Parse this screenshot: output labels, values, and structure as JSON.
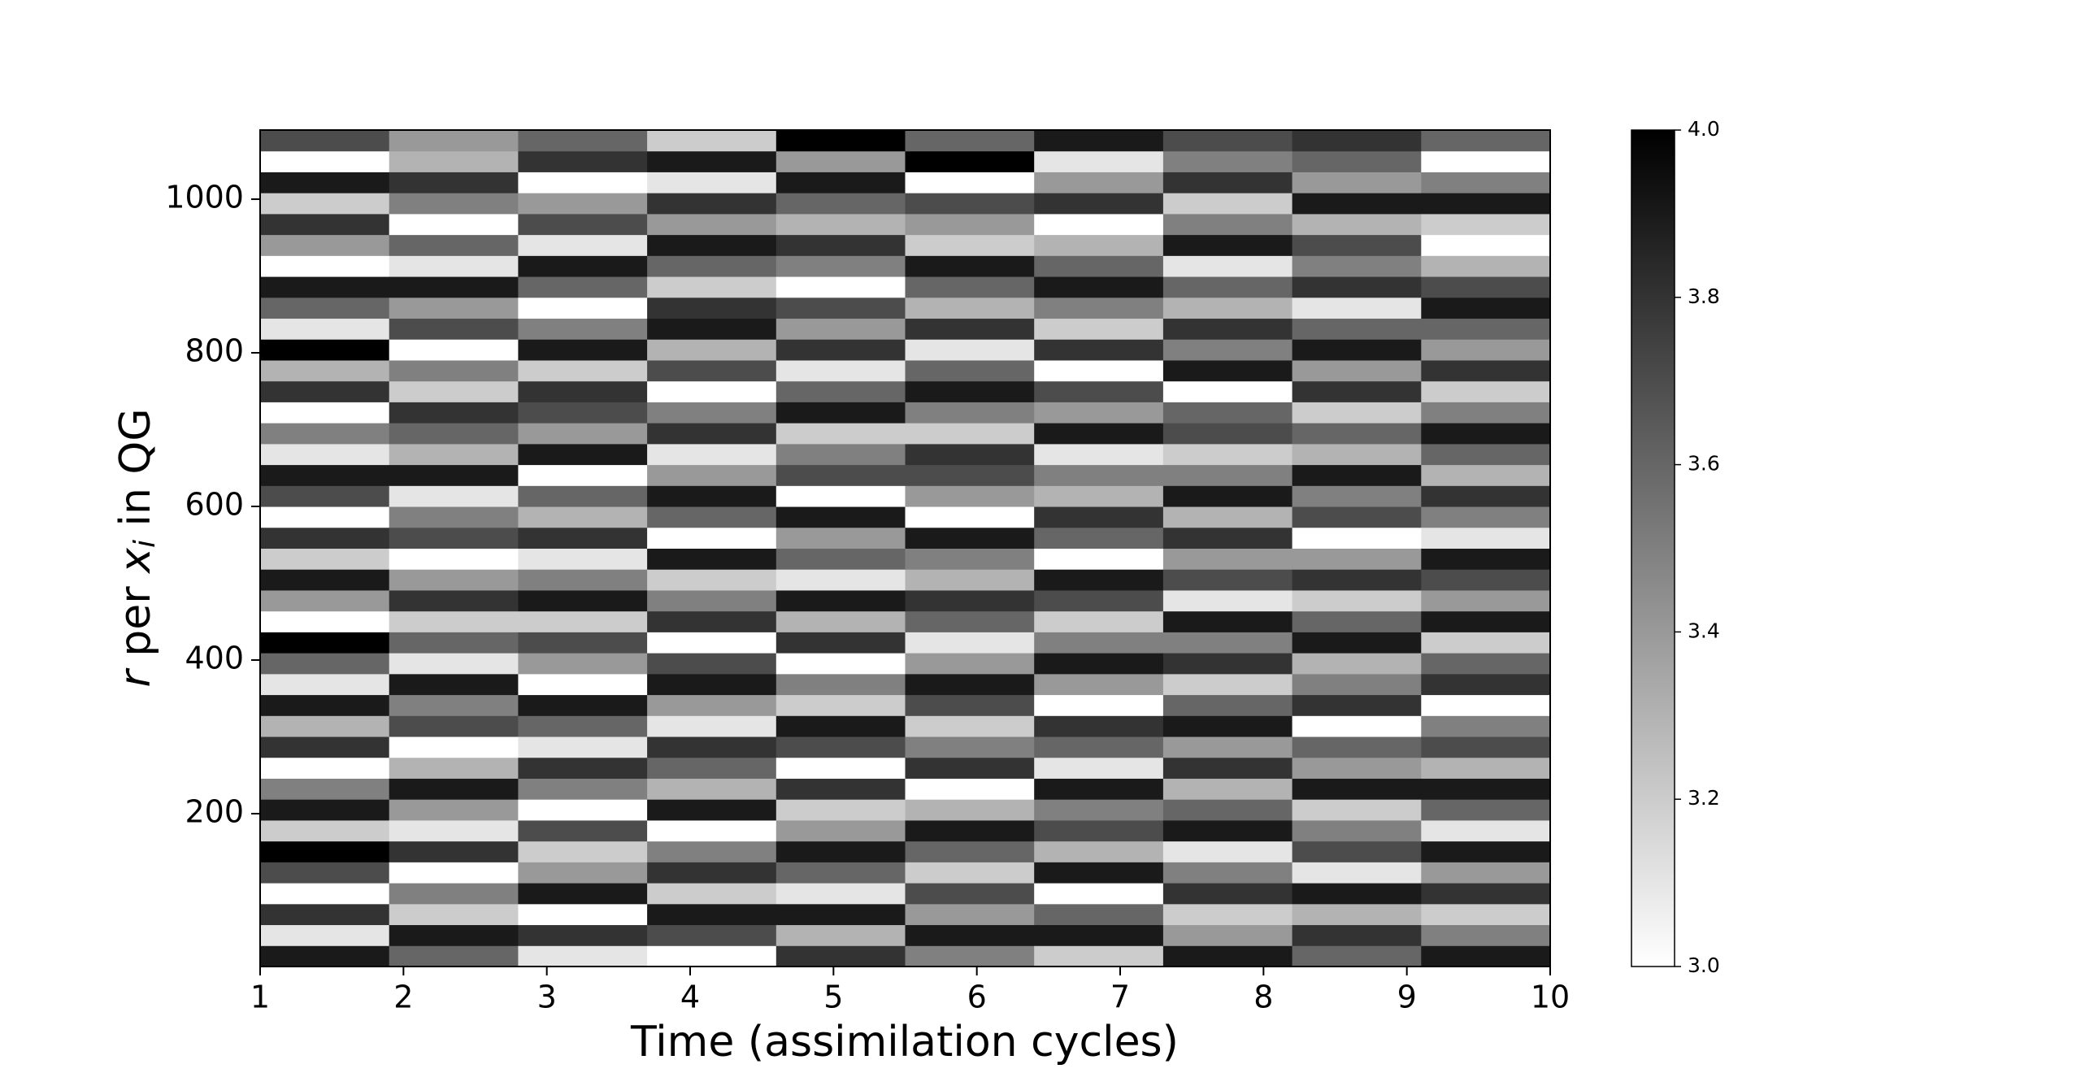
{
  "chart_data": {
    "type": "heatmap",
    "xlabel": "Time (assimilation cycles)",
    "ylabel_parts": [
      "r",
      " per ",
      "x",
      "i",
      " in QG"
    ],
    "xlim": [
      1,
      10
    ],
    "xticks": [
      1,
      2,
      3,
      4,
      5,
      6,
      7,
      8,
      9,
      10
    ],
    "ylim": [
      1,
      1090
    ],
    "yticks": [
      200,
      400,
      600,
      800,
      1000
    ],
    "colormap": [
      "#ffffff",
      "#000000"
    ],
    "clim": [
      3,
      4
    ],
    "cticks": [
      {
        "value": 3,
        "label": "3.0"
      },
      {
        "value": 3.2,
        "label": "3.2"
      },
      {
        "value": 3.4,
        "label": "3.4"
      },
      {
        "value": 3.6,
        "label": "3.6"
      },
      {
        "value": 3.8,
        "label": "3.8"
      },
      {
        "value": 4,
        "label": "4.0"
      }
    ],
    "values": [
      [
        3.9,
        3.1,
        3.8,
        3.0,
        3.7,
        4.0,
        3.2,
        3.9,
        3.5,
        3.0,
        3.8,
        3.3,
        3.9,
        3.1,
        3.6,
        4.0,
        3.0,
        3.4,
        3.9,
        3.2,
        3.8,
        3.0,
        3.7,
        3.9,
        3.1,
        3.5,
        3.0,
        3.8,
        3.3,
        4.0,
        3.1,
        3.6,
        3.9,
        3.0,
        3.4,
        3.8,
        3.2,
        3.9,
        3.0,
        3.7
      ],
      [
        3.6,
        3.9,
        3.2,
        3.5,
        3.0,
        3.8,
        3.1,
        3.4,
        3.9,
        3.3,
        3.0,
        3.7,
        3.5,
        3.9,
        3.1,
        3.6,
        3.2,
        3.8,
        3.4,
        3.0,
        3.7,
        3.5,
        3.1,
        3.9,
        3.3,
        3.6,
        3.8,
        3.2,
        3.5,
        3.0,
        3.7,
        3.4,
        3.9,
        3.1,
        3.6,
        3.0,
        3.5,
        3.8,
        3.3,
        3.4
      ],
      [
        3.1,
        3.8,
        3.0,
        3.9,
        3.4,
        3.2,
        3.7,
        3.0,
        3.5,
        3.8,
        3.1,
        3.6,
        3.9,
        3.0,
        3.4,
        3.7,
        3.2,
        3.9,
        3.5,
        3.1,
        3.8,
        3.3,
        3.6,
        3.0,
        3.9,
        3.4,
        3.7,
        3.8,
        3.2,
        3.9,
        3.5,
        3.0,
        3.6,
        3.9,
        3.1,
        3.7,
        3.4,
        3.0,
        3.8,
        3.6
      ],
      [
        3.0,
        3.7,
        3.9,
        3.2,
        3.8,
        3.5,
        3.0,
        3.9,
        3.3,
        3.6,
        3.8,
        3.1,
        3.4,
        3.9,
        3.7,
        3.0,
        3.8,
        3.5,
        3.2,
        3.9,
        3.0,
        3.6,
        3.9,
        3.4,
        3.1,
        3.8,
        3.5,
        3.0,
        3.7,
        3.3,
        3.9,
        3.8,
        3.2,
        3.6,
        3.9,
        3.4,
        3.8,
        3.1,
        3.9,
        3.2
      ],
      [
        3.8,
        3.3,
        3.9,
        3.1,
        3.6,
        3.9,
        3.4,
        3.2,
        3.8,
        3.0,
        3.7,
        3.9,
        3.2,
        3.5,
        3.0,
        3.8,
        3.3,
        3.9,
        3.1,
        3.6,
        3.4,
        3.9,
        3.0,
        3.7,
        3.5,
        3.2,
        3.9,
        3.6,
        3.1,
        3.8,
        3.4,
        3.7,
        3.0,
        3.5,
        3.8,
        3.3,
        3.6,
        3.9,
        3.4,
        4.0
      ],
      [
        3.5,
        3.9,
        3.4,
        3.7,
        3.2,
        3.6,
        3.9,
        3.3,
        3.0,
        3.8,
        3.5,
        3.2,
        3.7,
        3.9,
        3.4,
        3.1,
        3.6,
        3.8,
        3.3,
        3.5,
        3.9,
        3.0,
        3.4,
        3.7,
        3.8,
        3.2,
        3.5,
        3.9,
        3.6,
        3.1,
        3.8,
        3.3,
        3.6,
        3.9,
        3.2,
        3.4,
        3.7,
        3.0,
        4.0,
        3.6
      ],
      [
        3.2,
        3.9,
        3.6,
        3.0,
        3.9,
        3.3,
        3.7,
        3.5,
        3.9,
        3.1,
        3.6,
        3.8,
        3.0,
        3.4,
        3.9,
        3.5,
        3.2,
        3.7,
        3.9,
        3.0,
        3.6,
        3.8,
        3.3,
        3.5,
        3.1,
        3.9,
        3.4,
        3.7,
        3.0,
        3.8,
        3.2,
        3.5,
        3.9,
        3.6,
        3.3,
        3.0,
        3.8,
        3.4,
        3.1,
        3.9
      ],
      [
        3.9,
        3.4,
        3.2,
        3.8,
        3.5,
        3.1,
        3.9,
        3.6,
        3.3,
        3.8,
        3.4,
        3.9,
        3.6,
        3.2,
        3.8,
        3.5,
        3.9,
        3.1,
        3.7,
        3.4,
        3.8,
        3.3,
        3.9,
        3.5,
        3.2,
        3.7,
        3.6,
        3.0,
        3.9,
        3.5,
        3.8,
        3.3,
        3.6,
        3.1,
        3.9,
        3.5,
        3.2,
        3.8,
        3.5,
        3.7
      ],
      [
        3.6,
        3.8,
        3.3,
        3.9,
        3.1,
        3.7,
        3.5,
        3.2,
        3.9,
        3.4,
        3.6,
        3.0,
        3.8,
        3.5,
        3.3,
        3.9,
        3.6,
        3.2,
        3.8,
        3.4,
        3.0,
        3.7,
        3.5,
        3.9,
        3.3,
        3.6,
        3.2,
        3.8,
        3.4,
        3.9,
        3.6,
        3.1,
        3.8,
        3.5,
        3.7,
        3.3,
        3.9,
        3.4,
        3.6,
        3.8
      ],
      [
        3.9,
        3.5,
        3.2,
        3.8,
        3.4,
        3.9,
        3.1,
        3.6,
        3.9,
        3.3,
        3.7,
        3.5,
        3.0,
        3.8,
        3.6,
        3.2,
        3.9,
        3.4,
        3.7,
        3.9,
        3.1,
        3.5,
        3.8,
        3.3,
        3.6,
        3.9,
        3.5,
        3.2,
        3.8,
        3.4,
        3.6,
        3.9,
        3.7,
        3.3,
        3.0,
        3.2,
        3.9,
        3.5,
        3.0,
        3.6
      ]
    ]
  }
}
